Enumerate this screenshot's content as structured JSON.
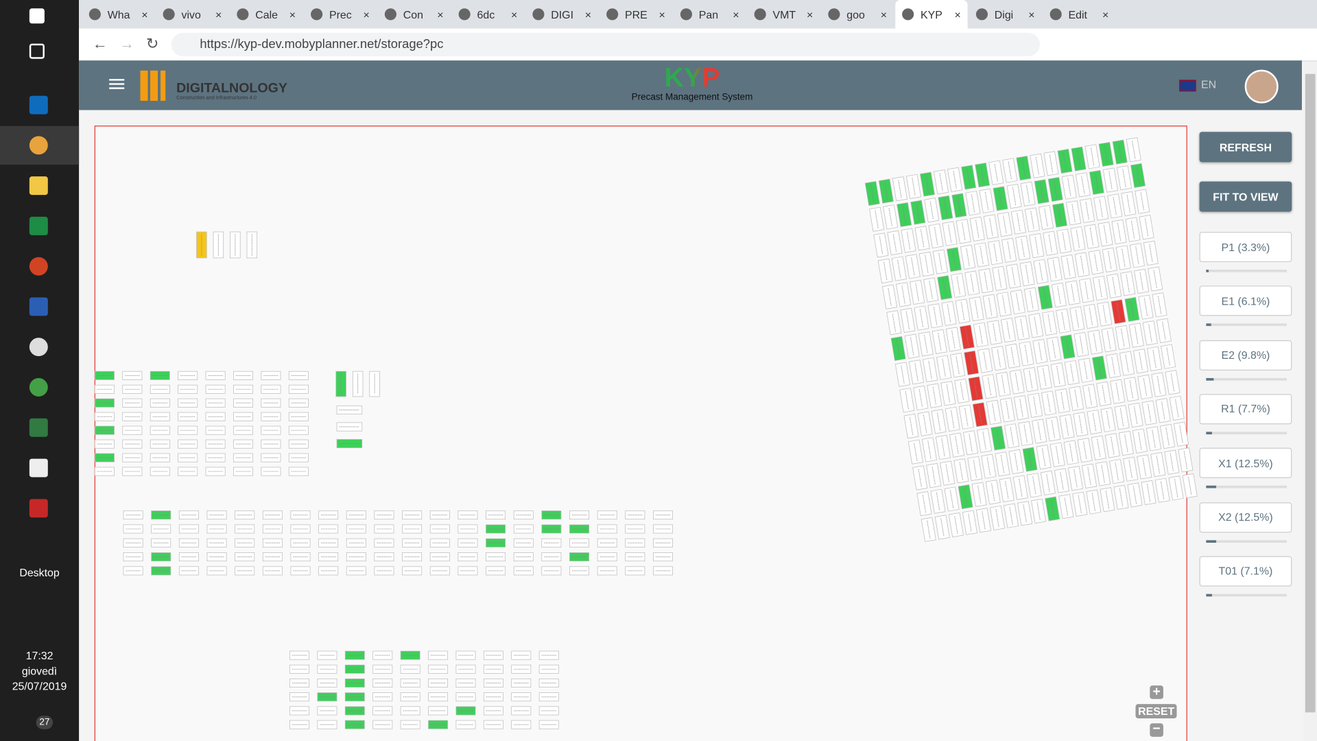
{
  "taskbar": {
    "desktop_label": "Desktop",
    "time": "17:32",
    "day": "giovedì",
    "date": "25/07/2019",
    "notifications": "27"
  },
  "browser": {
    "tabs": [
      "Wha",
      "vivo",
      "Cale",
      "Prec",
      "Con",
      "6dc",
      "DIGI",
      "PRE",
      "Pan",
      "VMT",
      "goo",
      "KYP",
      "Digi",
      "Edit"
    ],
    "url": "https://kyp-dev.mobyplanner.net/storage?pc"
  },
  "app": {
    "brand": "DIGITALNOLOGY",
    "brand_sub": "Construction and Infrastructures 4.0",
    "logo": "KYP",
    "subtitle": "Precast Management System",
    "language": "EN"
  },
  "buttons": [
    "REFRESH",
    "FIT TO VIEW"
  ],
  "zones": [
    {
      "label": "P1 (3.3%)",
      "percent": 3.3
    },
    {
      "label": "E1 (6.1%)",
      "percent": 6.1
    },
    {
      "label": "E2 (9.8%)",
      "percent": 9.8
    },
    {
      "label": "R1 (7.7%)",
      "percent": 7.7
    },
    {
      "label": "X1 (12.5%)",
      "percent": 12.5
    },
    {
      "label": "X2 (12.5%)",
      "percent": 12.5
    },
    {
      "label": "T01 (7.1%)",
      "percent": 7.1
    }
  ],
  "zoom": {
    "reset": "RESET"
  }
}
